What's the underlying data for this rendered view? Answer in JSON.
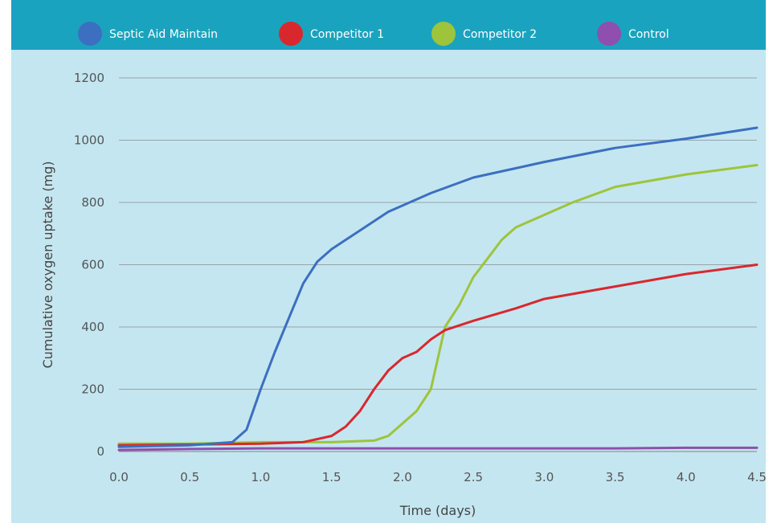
{
  "colors": {
    "header": "#1aa3bf",
    "plot_bg": "#c4e6f0",
    "grid": "#9aa2a6",
    "series": {
      "Septic Aid Maintain": "#3c6fc0",
      "Competitor 1": "#d8282e",
      "Competitor 2": "#9ec43b",
      "Control": "#8e4fae"
    }
  },
  "chart_data": {
    "type": "line",
    "title": "",
    "xlabel": "Time (days)",
    "ylabel": "Cumulative oxygen uptake (mg)",
    "xlim": [
      0,
      4.5
    ],
    "ylim": [
      0,
      1200
    ],
    "x_ticks": [
      "0.0",
      "0.5",
      "1.0",
      "1.5",
      "2.0",
      "2.5",
      "3.0",
      "3.5",
      "4.0",
      "4.5"
    ],
    "y_ticks": [
      "0",
      "200",
      "400",
      "600",
      "800",
      "1000",
      "1200"
    ],
    "grid": true,
    "legend_position": "top",
    "series": [
      {
        "name": "Septic Aid Maintain",
        "color": "#3c6fc0",
        "x": [
          0.0,
          0.5,
          0.8,
          0.9,
          1.0,
          1.1,
          1.2,
          1.3,
          1.4,
          1.5,
          1.6,
          1.7,
          1.8,
          1.9,
          2.0,
          2.2,
          2.5,
          3.0,
          3.5,
          4.0,
          4.5
        ],
        "y": [
          15,
          20,
          30,
          70,
          200,
          320,
          430,
          540,
          610,
          650,
          680,
          710,
          740,
          770,
          790,
          830,
          880,
          930,
          975,
          1005,
          1040
        ]
      },
      {
        "name": "Competitor 1",
        "color": "#d8282e",
        "x": [
          0.0,
          1.0,
          1.3,
          1.5,
          1.6,
          1.7,
          1.8,
          1.9,
          2.0,
          2.1,
          2.2,
          2.3,
          2.5,
          2.8,
          3.0,
          3.5,
          4.0,
          4.5
        ],
        "y": [
          20,
          25,
          30,
          50,
          80,
          130,
          200,
          260,
          300,
          320,
          360,
          390,
          420,
          460,
          490,
          530,
          570,
          600
        ]
      },
      {
        "name": "Competitor 2",
        "color": "#9ec43b",
        "x": [
          0.0,
          0.5,
          1.0,
          1.5,
          1.8,
          1.9,
          2.0,
          2.1,
          2.2,
          2.25,
          2.3,
          2.4,
          2.5,
          2.6,
          2.7,
          2.8,
          3.0,
          3.2,
          3.5,
          4.0,
          4.5
        ],
        "y": [
          25,
          25,
          30,
          30,
          35,
          50,
          90,
          130,
          200,
          300,
          400,
          470,
          560,
          620,
          680,
          720,
          760,
          800,
          850,
          890,
          920
        ]
      },
      {
        "name": "Control",
        "color": "#8e4fae",
        "x": [
          0.0,
          0.5,
          1.0,
          1.5,
          2.0,
          2.5,
          3.0,
          3.5,
          4.0,
          4.5
        ],
        "y": [
          5,
          8,
          10,
          10,
          10,
          10,
          10,
          10,
          12,
          12
        ]
      }
    ]
  }
}
